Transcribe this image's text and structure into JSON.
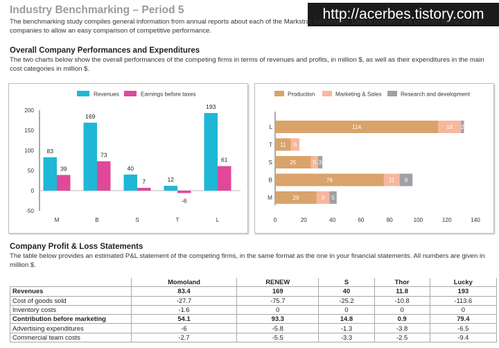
{
  "page": {
    "title": "Industry Benchmarking – Period 5",
    "intro": "The benchmarking study compiles general information from annual reports about each of the Markstrat competitors. Data is provided in a common format for all companies to allow an easy comparison of competitive performance.",
    "watermark": "http://acerbes.tistory.com"
  },
  "section1": {
    "title": "Overall Company Performances and Expenditures",
    "text": "The two charts below show the overall performances of the competing firms in terms of revenues and profits, in million $, as well as their expenditures in the main cost categories in million $."
  },
  "section2": {
    "title": "Company Profit & Loss Statements",
    "text": "The table below provides an estimated P&L statement of the competing firms, in the same format as the one in your financial statements. All numbers are given in million $."
  },
  "colors": {
    "revenues": "#1fb7d6",
    "earnings": "#e0489a",
    "production": "#d9a36a",
    "marketing": "#f7b79d",
    "rd": "#a0a0a4"
  },
  "chart_data": [
    {
      "type": "bar",
      "categories": [
        "M",
        "B",
        "S",
        "T",
        "L"
      ],
      "series": [
        {
          "name": "Revenues",
          "values": [
            83,
            169,
            40,
            12,
            193
          ]
        },
        {
          "name": "Earnings before taxes",
          "values": [
            39,
            73,
            7,
            -6,
            61
          ]
        }
      ],
      "ylim": [
        -50,
        200
      ],
      "yticks": [
        -50,
        0,
        50,
        100,
        150,
        200
      ],
      "legend": "top"
    },
    {
      "type": "bar",
      "orientation": "horizontal",
      "stacked": true,
      "categories": [
        "L",
        "T",
        "S",
        "B",
        "M"
      ],
      "series": [
        {
          "name": "Production",
          "values": [
            114,
            11,
            25,
            76,
            29
          ]
        },
        {
          "name": "Marketing & Sales",
          "values": [
            16,
            6,
            5,
            11,
            9
          ]
        },
        {
          "name": "Research and development",
          "values": [
            2,
            0,
            3,
            9,
            5
          ]
        }
      ],
      "segment_labels": [
        [
          "114",
          "16",
          "2"
        ],
        [
          "11",
          "6",
          "0"
        ],
        [
          "25",
          "5",
          "3"
        ],
        [
          "76",
          "11",
          "9"
        ],
        [
          "29",
          "9",
          "5"
        ]
      ],
      "xlim": [
        0,
        140
      ],
      "xticks": [
        0,
        20,
        40,
        60,
        80,
        100,
        120,
        140
      ],
      "legend": "top"
    }
  ],
  "table": {
    "columns": [
      "Momoland",
      "RENEW",
      "S",
      "Thor",
      "Lucky"
    ],
    "rows": [
      {
        "label": "Revenues",
        "values": [
          "83.4",
          "169",
          "40",
          "11.8",
          "193"
        ],
        "bold": true
      },
      {
        "label": "Cost of goods sold",
        "values": [
          "-27.7",
          "-75.7",
          "-25.2",
          "-10.8",
          "-113.6"
        ],
        "bold": false
      },
      {
        "label": "Inventory costs",
        "values": [
          "-1.6",
          "0",
          "0",
          "0",
          "0"
        ],
        "bold": false
      },
      {
        "label": "Contribution before marketing",
        "values": [
          "54.1",
          "93.3",
          "14.8",
          "0.9",
          "79.4"
        ],
        "bold": true
      },
      {
        "label": "Advertising expenditures",
        "values": [
          "-6",
          "-5.8",
          "-1.3",
          "-3.8",
          "-6.5"
        ],
        "bold": false
      },
      {
        "label": "Commercial team costs",
        "values": [
          "-2.7",
          "-5.5",
          "-3.3",
          "-2.5",
          "-9.4"
        ],
        "bold": false
      }
    ]
  }
}
